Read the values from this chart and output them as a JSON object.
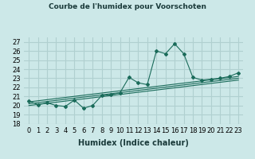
{
  "title": "Courbe de l'humidex pour Voorschoten",
  "xlabel": "Humidex (Indice chaleur)",
  "ylabel": "",
  "background_color": "#cce8e8",
  "grid_color": "#b0d0d0",
  "line_color": "#1a6b5a",
  "xlim": [
    -0.5,
    23.5
  ],
  "ylim": [
    18,
    27.5
  ],
  "yticks": [
    18,
    19,
    20,
    21,
    22,
    23,
    24,
    25,
    26,
    27
  ],
  "xtick_labels": [
    "0",
    "1",
    "2",
    "3",
    "4",
    "5",
    "6",
    "7",
    "8",
    "9",
    "10",
    "11",
    "12",
    "13",
    "14",
    "15",
    "16",
    "17",
    "18",
    "19",
    "20",
    "21",
    "22",
    "23"
  ],
  "series1": [
    20.5,
    20.1,
    20.3,
    20.0,
    19.9,
    20.6,
    19.7,
    20.0,
    21.1,
    21.2,
    21.4,
    23.1,
    22.5,
    22.3,
    26.0,
    25.7,
    26.8,
    25.7,
    23.1,
    22.8,
    22.9,
    23.0,
    23.2,
    23.6
  ],
  "series2_x": [
    0,
    23
  ],
  "series2_y": [
    20.0,
    22.8
  ],
  "series3_x": [
    0,
    23
  ],
  "series3_y": [
    20.2,
    23.0
  ],
  "series4_x": [
    0,
    23
  ],
  "series4_y": [
    20.4,
    23.2
  ]
}
